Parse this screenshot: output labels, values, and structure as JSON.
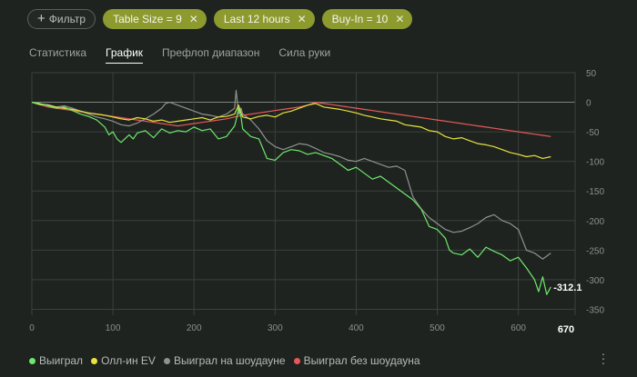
{
  "filter_bar": {
    "add_label": "Фильтр",
    "chips": [
      {
        "label": "Table Size = 9"
      },
      {
        "label": "Last 12 hours"
      },
      {
        "label": "Buy-In = 10"
      }
    ]
  },
  "tabs": [
    {
      "label": "Статистика",
      "active": false
    },
    {
      "label": "График",
      "active": true
    },
    {
      "label": "Префлоп диапазон",
      "active": false
    },
    {
      "label": "Сила руки",
      "active": false
    }
  ],
  "chart_data": {
    "type": "line",
    "xlim": [
      0,
      670
    ],
    "ylim": [
      -360,
      50
    ],
    "x_ticks": [
      0,
      100,
      200,
      300,
      400,
      500,
      600
    ],
    "y_ticks": [
      50,
      0,
      -50,
      -100,
      -150,
      -200,
      -250,
      -300,
      -350
    ],
    "x_end_label": "670",
    "end_value_label": "-312.1",
    "series": [
      {
        "name": "Выиграл",
        "color": "#6ee86b",
        "points": [
          [
            0,
            0
          ],
          [
            10,
            -2
          ],
          [
            20,
            -6
          ],
          [
            30,
            -10
          ],
          [
            40,
            -8
          ],
          [
            50,
            -14
          ],
          [
            60,
            -20
          ],
          [
            70,
            -24
          ],
          [
            80,
            -30
          ],
          [
            90,
            -42
          ],
          [
            95,
            -55
          ],
          [
            100,
            -50
          ],
          [
            105,
            -62
          ],
          [
            110,
            -68
          ],
          [
            120,
            -55
          ],
          [
            125,
            -62
          ],
          [
            130,
            -52
          ],
          [
            140,
            -48
          ],
          [
            150,
            -60
          ],
          [
            160,
            -45
          ],
          [
            170,
            -52
          ],
          [
            180,
            -48
          ],
          [
            190,
            -50
          ],
          [
            200,
            -42
          ],
          [
            210,
            -48
          ],
          [
            220,
            -45
          ],
          [
            230,
            -62
          ],
          [
            240,
            -58
          ],
          [
            250,
            -40
          ],
          [
            252,
            -30
          ],
          [
            255,
            -10
          ],
          [
            258,
            -25
          ],
          [
            260,
            -45
          ],
          [
            270,
            -58
          ],
          [
            280,
            -62
          ],
          [
            290,
            -95
          ],
          [
            300,
            -98
          ],
          [
            310,
            -85
          ],
          [
            320,
            -80
          ],
          [
            330,
            -82
          ],
          [
            340,
            -88
          ],
          [
            350,
            -85
          ],
          [
            360,
            -90
          ],
          [
            370,
            -95
          ],
          [
            380,
            -105
          ],
          [
            390,
            -115
          ],
          [
            400,
            -110
          ],
          [
            410,
            -120
          ],
          [
            420,
            -130
          ],
          [
            430,
            -125
          ],
          [
            440,
            -135
          ],
          [
            450,
            -145
          ],
          [
            460,
            -155
          ],
          [
            470,
            -165
          ],
          [
            480,
            -180
          ],
          [
            490,
            -210
          ],
          [
            500,
            -215
          ],
          [
            510,
            -230
          ],
          [
            515,
            -250
          ],
          [
            520,
            -255
          ],
          [
            530,
            -258
          ],
          [
            540,
            -248
          ],
          [
            550,
            -262
          ],
          [
            560,
            -245
          ],
          [
            570,
            -252
          ],
          [
            580,
            -258
          ],
          [
            590,
            -268
          ],
          [
            600,
            -262
          ],
          [
            610,
            -280
          ],
          [
            620,
            -300
          ],
          [
            625,
            -320
          ],
          [
            630,
            -295
          ],
          [
            635,
            -325
          ],
          [
            640,
            -312.1
          ]
        ]
      },
      {
        "name": "Олл-ин EV",
        "color": "#e8e23c",
        "points": [
          [
            0,
            0
          ],
          [
            10,
            -4
          ],
          [
            20,
            -5
          ],
          [
            30,
            -8
          ],
          [
            40,
            -10
          ],
          [
            50,
            -12
          ],
          [
            60,
            -15
          ],
          [
            70,
            -18
          ],
          [
            80,
            -20
          ],
          [
            90,
            -22
          ],
          [
            100,
            -25
          ],
          [
            110,
            -28
          ],
          [
            120,
            -30
          ],
          [
            130,
            -26
          ],
          [
            140,
            -28
          ],
          [
            150,
            -32
          ],
          [
            160,
            -30
          ],
          [
            170,
            -34
          ],
          [
            180,
            -32
          ],
          [
            190,
            -30
          ],
          [
            200,
            -28
          ],
          [
            210,
            -26
          ],
          [
            220,
            -30
          ],
          [
            230,
            -25
          ],
          [
            240,
            -24
          ],
          [
            250,
            -20
          ],
          [
            255,
            -5
          ],
          [
            258,
            -18
          ],
          [
            260,
            -25
          ],
          [
            270,
            -28
          ],
          [
            280,
            -24
          ],
          [
            290,
            -22
          ],
          [
            300,
            -25
          ],
          [
            310,
            -18
          ],
          [
            320,
            -15
          ],
          [
            330,
            -10
          ],
          [
            340,
            -5
          ],
          [
            350,
            -2
          ],
          [
            360,
            -8
          ],
          [
            370,
            -10
          ],
          [
            380,
            -12
          ],
          [
            390,
            -15
          ],
          [
            400,
            -18
          ],
          [
            410,
            -22
          ],
          [
            420,
            -25
          ],
          [
            430,
            -28
          ],
          [
            440,
            -30
          ],
          [
            450,
            -32
          ],
          [
            460,
            -38
          ],
          [
            470,
            -40
          ],
          [
            480,
            -42
          ],
          [
            490,
            -48
          ],
          [
            500,
            -50
          ],
          [
            510,
            -58
          ],
          [
            520,
            -62
          ],
          [
            530,
            -60
          ],
          [
            540,
            -65
          ],
          [
            550,
            -70
          ],
          [
            560,
            -72
          ],
          [
            570,
            -75
          ],
          [
            580,
            -80
          ],
          [
            590,
            -85
          ],
          [
            600,
            -88
          ],
          [
            610,
            -92
          ],
          [
            620,
            -90
          ],
          [
            630,
            -95
          ],
          [
            640,
            -92
          ]
        ]
      },
      {
        "name": "Выиграл на шоудауне",
        "color": "#8f938f",
        "points": [
          [
            0,
            0
          ],
          [
            10,
            -3
          ],
          [
            20,
            -4
          ],
          [
            30,
            -8
          ],
          [
            40,
            -6
          ],
          [
            50,
            -10
          ],
          [
            60,
            -15
          ],
          [
            70,
            -20
          ],
          [
            80,
            -25
          ],
          [
            90,
            -28
          ],
          [
            100,
            -32
          ],
          [
            110,
            -38
          ],
          [
            120,
            -40
          ],
          [
            130,
            -35
          ],
          [
            140,
            -28
          ],
          [
            150,
            -20
          ],
          [
            160,
            -10
          ],
          [
            165,
            -2
          ],
          [
            170,
            0
          ],
          [
            180,
            -5
          ],
          [
            190,
            -10
          ],
          [
            200,
            -15
          ],
          [
            210,
            -20
          ],
          [
            220,
            -22
          ],
          [
            230,
            -25
          ],
          [
            240,
            -20
          ],
          [
            250,
            -10
          ],
          [
            252,
            20
          ],
          [
            255,
            -20
          ],
          [
            258,
            -10
          ],
          [
            260,
            -20
          ],
          [
            270,
            -30
          ],
          [
            280,
            -45
          ],
          [
            290,
            -65
          ],
          [
            300,
            -75
          ],
          [
            310,
            -80
          ],
          [
            320,
            -75
          ],
          [
            330,
            -70
          ],
          [
            340,
            -72
          ],
          [
            350,
            -78
          ],
          [
            360,
            -85
          ],
          [
            370,
            -88
          ],
          [
            380,
            -92
          ],
          [
            390,
            -98
          ],
          [
            400,
            -100
          ],
          [
            410,
            -95
          ],
          [
            420,
            -100
          ],
          [
            430,
            -105
          ],
          [
            440,
            -110
          ],
          [
            450,
            -108
          ],
          [
            460,
            -115
          ],
          [
            470,
            -160
          ],
          [
            480,
            -180
          ],
          [
            490,
            -195
          ],
          [
            500,
            -205
          ],
          [
            510,
            -215
          ],
          [
            520,
            -220
          ],
          [
            530,
            -218
          ],
          [
            540,
            -212
          ],
          [
            550,
            -205
          ],
          [
            560,
            -195
          ],
          [
            570,
            -190
          ],
          [
            580,
            -200
          ],
          [
            590,
            -205
          ],
          [
            600,
            -215
          ],
          [
            610,
            -250
          ],
          [
            620,
            -255
          ],
          [
            630,
            -265
          ],
          [
            640,
            -255
          ]
        ]
      },
      {
        "name": "Выиграл без шоудауна",
        "color": "#e85858",
        "points": [
          [
            0,
            0
          ],
          [
            10,
            -4
          ],
          [
            20,
            -8
          ],
          [
            30,
            -10
          ],
          [
            40,
            -12
          ],
          [
            50,
            -14
          ],
          [
            60,
            -16
          ],
          [
            70,
            -18
          ],
          [
            80,
            -20
          ],
          [
            90,
            -22
          ],
          [
            100,
            -24
          ],
          [
            110,
            -26
          ],
          [
            120,
            -28
          ],
          [
            130,
            -30
          ],
          [
            140,
            -32
          ],
          [
            150,
            -34
          ],
          [
            160,
            -36
          ],
          [
            170,
            -38
          ],
          [
            180,
            -40
          ],
          [
            190,
            -38
          ],
          [
            200,
            -36
          ],
          [
            210,
            -34
          ],
          [
            220,
            -32
          ],
          [
            230,
            -30
          ],
          [
            240,
            -28
          ],
          [
            250,
            -25
          ],
          [
            260,
            -22
          ],
          [
            270,
            -20
          ],
          [
            280,
            -18
          ],
          [
            290,
            -16
          ],
          [
            300,
            -14
          ],
          [
            310,
            -12
          ],
          [
            320,
            -10
          ],
          [
            330,
            -8
          ],
          [
            340,
            -5
          ],
          [
            350,
            0
          ],
          [
            360,
            -2
          ],
          [
            370,
            -4
          ],
          [
            380,
            -6
          ],
          [
            390,
            -8
          ],
          [
            400,
            -10
          ],
          [
            410,
            -12
          ],
          [
            420,
            -14
          ],
          [
            430,
            -16
          ],
          [
            440,
            -18
          ],
          [
            450,
            -20
          ],
          [
            460,
            -22
          ],
          [
            470,
            -24
          ],
          [
            480,
            -26
          ],
          [
            490,
            -28
          ],
          [
            500,
            -30
          ],
          [
            510,
            -32
          ],
          [
            520,
            -34
          ],
          [
            530,
            -36
          ],
          [
            540,
            -38
          ],
          [
            550,
            -40
          ],
          [
            560,
            -42
          ],
          [
            570,
            -44
          ],
          [
            580,
            -46
          ],
          [
            590,
            -48
          ],
          [
            600,
            -50
          ],
          [
            610,
            -52
          ],
          [
            620,
            -54
          ],
          [
            630,
            -56
          ],
          [
            640,
            -58
          ]
        ]
      }
    ]
  },
  "legend": [
    {
      "label": "Выиграл",
      "color": "#6ee86b"
    },
    {
      "label": "Олл-ин EV",
      "color": "#e8e23c"
    },
    {
      "label": "Выиграл на шоудауне",
      "color": "#8f938f"
    },
    {
      "label": "Выиграл без шоудауна",
      "color": "#e85858"
    }
  ],
  "menu_icon": "more-vertical-icon",
  "colors": {
    "background": "#1e2320",
    "chip": "#8c9a2e",
    "grid": "#3a403c",
    "zero_line": "#7d827e"
  }
}
